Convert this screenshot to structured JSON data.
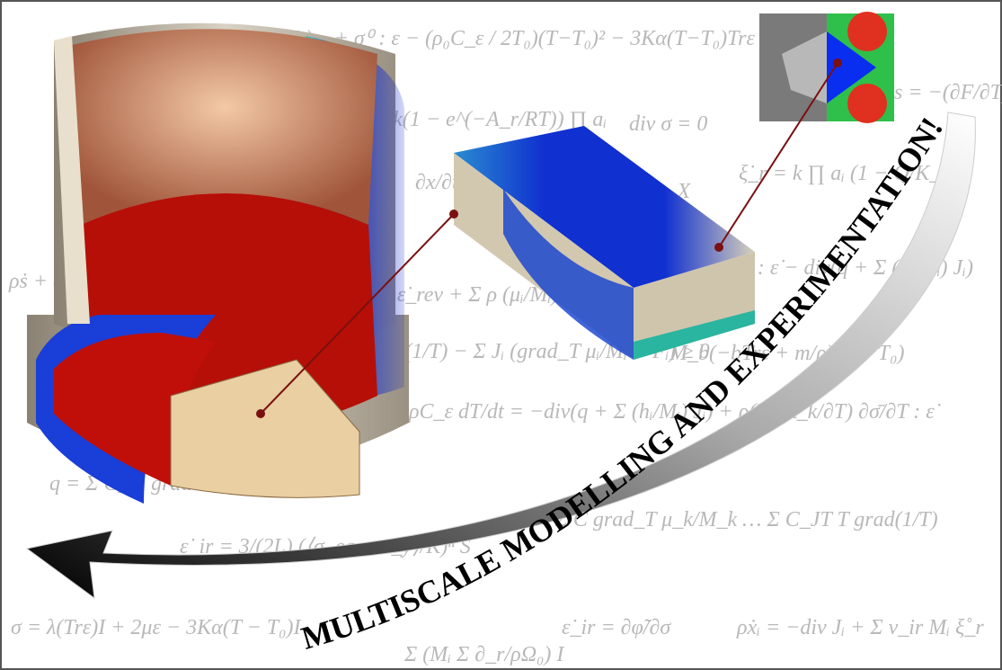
{
  "slogan": "MULTISCALE MODELLING AND EXPERIMENTATION!",
  "equations": [
    "ψ = −ρ(T−T₀)s₀ + σ⁰ : ε − (ρ₀C_ε / 2T₀)(T−T₀)² − 3Kα(T−T₀)Trε + με : ε]",
    "= k(1 − e^(−A_r/RT)) ∏ aᵢ",
    "div σ = 0",
    "s = −(∂F/∂T)",
    "∂x/∂t",
    "+ r_X",
    "ξ̇_r = k ∏ aᵢ (1 − Q/K_eq)",
    "ρṡ + div",
    "σ : ε̇_rev + Σ ρ (μᵢ/Mᵢ) ẋᵢ + σ",
    "σ : ε̇ − div(q + Σ (hᵢ/Mᵢ) Jᵢ)",
    "grad(1/T) − Σ Jᵢ (grad_T μᵢ/Mᵢ − Fᵢ) ≥ 0",
    "M_b(−bTrε + m/ρ)(T − T₀)",
    "ρC_ε dT/dt = −div(q + Σ (hᵢ/Mᵢ) Jᵢ) + ρ(T ∂A_k/∂T) ∂σ̄/∂T : ε̇",
    "q = Σ C_Ti grad … T grad(1/T)",
    "Jᵢ = Σ C grad_T μ_k/M_k … Σ C_JT T grad(1/T)",
    "ε̇_ir = 3/(2L) (⟨σ_eq − σ_y⟩/K)ⁿ S",
    "σ = λ(Trε)I + 2με − 3Kα(T − T₀)I",
    "Σ (Mᵢ Σ ∂_r/ρΩ₀) I",
    "ε̇_ir = ∂φ̃/∂σ",
    "ρẋᵢ = −div Jᵢ + Σ ν_ir Mᵢ ξ̊_r"
  ]
}
